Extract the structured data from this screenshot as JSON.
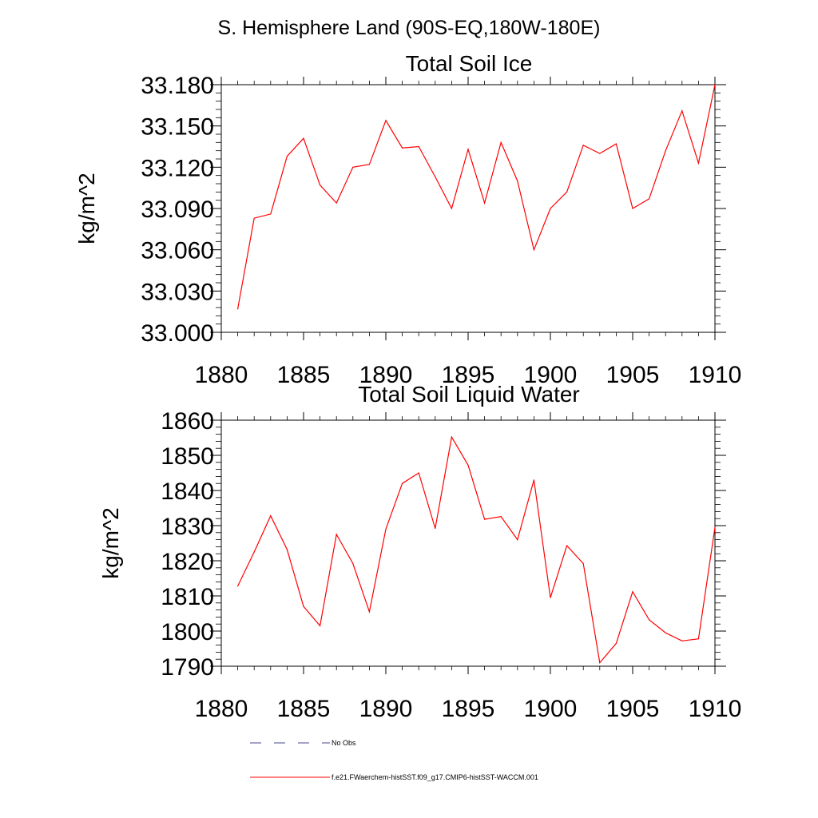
{
  "main_title": "S. Hemisphere Land (90S-EQ,180W-180E)",
  "legend": {
    "entries": [
      {
        "label": "No Obs",
        "style": "dashed",
        "color": "#4a4a8a"
      },
      {
        "label": "f.e21.FWaerchem-histSST.f09_g17.CMIP6-histSST-WACCM.001",
        "style": "solid",
        "color": "#ff0000"
      }
    ]
  },
  "chart_data": [
    {
      "type": "line",
      "title": "Total Soil Ice",
      "xlabel": "",
      "ylabel": "kg/m^2",
      "xlim": [
        1880,
        1910
      ],
      "ylim": [
        33.0,
        33.18
      ],
      "x_ticks": [
        1880,
        1885,
        1890,
        1895,
        1900,
        1905,
        1910
      ],
      "x_tick_labels": [
        "1880",
        "1885",
        "1890",
        "1895",
        "1900",
        "1905",
        "1910"
      ],
      "y_ticks": [
        33.0,
        33.03,
        33.06,
        33.09,
        33.12,
        33.15,
        33.18
      ],
      "y_tick_labels": [
        "33.000",
        "33.030",
        "33.060",
        "33.090",
        "33.120",
        "33.150",
        "33.180"
      ],
      "y_minor_step": 0.006,
      "x_minor_step": 1,
      "grid": false,
      "series": [
        {
          "color": "#ff0000",
          "x": [
            1881,
            1882,
            1883,
            1884,
            1885,
            1886,
            1887,
            1888,
            1889,
            1890,
            1891,
            1892,
            1893,
            1894,
            1895,
            1896,
            1897,
            1898,
            1899,
            1900,
            1901,
            1902,
            1903,
            1904,
            1905,
            1906,
            1907,
            1908,
            1909,
            1910
          ],
          "values": [
            33.017,
            33.083,
            33.086,
            33.128,
            33.141,
            33.107,
            33.094,
            33.12,
            33.122,
            33.154,
            33.134,
            33.135,
            33.113,
            33.09,
            33.133,
            33.094,
            33.138,
            33.11,
            33.06,
            33.09,
            33.102,
            33.136,
            33.13,
            33.137,
            33.09,
            33.097,
            33.132,
            33.161,
            33.123,
            33.18
          ]
        }
      ]
    },
    {
      "type": "line",
      "title": "Total Soil Liquid Water",
      "xlabel": "",
      "ylabel": "kg/m^2",
      "xlim": [
        1880,
        1910
      ],
      "ylim": [
        1790,
        1860
      ],
      "x_ticks": [
        1880,
        1885,
        1890,
        1895,
        1900,
        1905,
        1910
      ],
      "x_tick_labels": [
        "1880",
        "1885",
        "1890",
        "1895",
        "1900",
        "1905",
        "1910"
      ],
      "y_ticks": [
        1790,
        1800,
        1810,
        1820,
        1830,
        1840,
        1850,
        1860
      ],
      "y_tick_labels": [
        "1790",
        "1800",
        "1810",
        "1820",
        "1830",
        "1840",
        "1850",
        "1860"
      ],
      "y_minor_step": 2,
      "x_minor_step": 1,
      "grid": false,
      "series": [
        {
          "color": "#ff0000",
          "x": [
            1881,
            1882,
            1883,
            1884,
            1885,
            1886,
            1887,
            1888,
            1889,
            1890,
            1891,
            1892,
            1893,
            1894,
            1895,
            1896,
            1897,
            1898,
            1899,
            1900,
            1901,
            1902,
            1903,
            1904,
            1905,
            1906,
            1907,
            1908,
            1909,
            1910
          ],
          "values": [
            1812.8,
            1822.5,
            1832.8,
            1823.2,
            1807.0,
            1801.5,
            1827.5,
            1819.2,
            1805.5,
            1829.0,
            1842.0,
            1845.0,
            1829.2,
            1855.2,
            1847.2,
            1831.8,
            1832.6,
            1826.0,
            1843.0,
            1809.5,
            1824.3,
            1819.2,
            1791.0,
            1796.5,
            1811.2,
            1803.2,
            1799.5,
            1797.2,
            1797.8,
            1829.5
          ]
        }
      ]
    }
  ]
}
